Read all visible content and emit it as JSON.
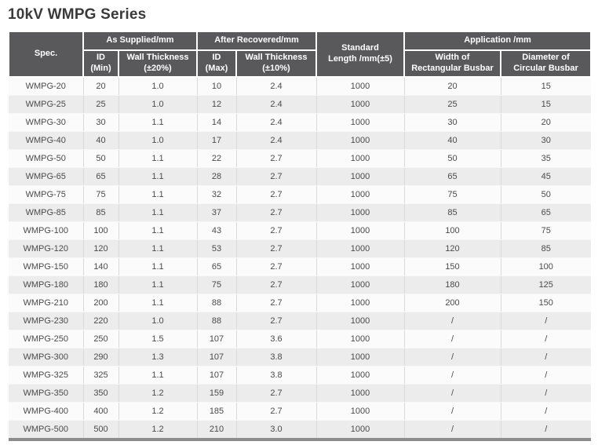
{
  "page_title": "10kV WMPG Series",
  "table": {
    "headers": {
      "spec": "Spec.",
      "as_supplied": "As Supplied/mm",
      "after_recovered": "After Recovered/mm",
      "standard_length": "Standard\nLength /mm(±5)",
      "application": "Application /mm",
      "id_min": "ID\n(Min)",
      "wall_thickness_20": "Wall Thickness\n(±20%)",
      "id_max": "ID\n(Max)",
      "wall_thickness_10": "Wall Thickness\n(±10%)",
      "width_rect_busbar": "Width of\nRectangular Busbar",
      "dia_circ_busbar": "Diameter of\nCircular Busbar"
    },
    "rows": [
      [
        "WMPG-20",
        "20",
        "1.0",
        "10",
        "2.4",
        "1000",
        "20",
        "15"
      ],
      [
        "WMPG-25",
        "25",
        "1.0",
        "12",
        "2.4",
        "1000",
        "25",
        "15"
      ],
      [
        "WMPG-30",
        "30",
        "1.1",
        "14",
        "2.4",
        "1000",
        "30",
        "20"
      ],
      [
        "WMPG-40",
        "40",
        "1.0",
        "17",
        "2.4",
        "1000",
        "40",
        "30"
      ],
      [
        "WMPG-50",
        "50",
        "1.1",
        "22",
        "2.7",
        "1000",
        "50",
        "35"
      ],
      [
        "WMPG-65",
        "65",
        "1.1",
        "28",
        "2.7",
        "1000",
        "65",
        "45"
      ],
      [
        "WMPG-75",
        "75",
        "1.1",
        "32",
        "2.7",
        "1000",
        "75",
        "50"
      ],
      [
        "WMPG-85",
        "85",
        "1.1",
        "37",
        "2.7",
        "1000",
        "85",
        "65"
      ],
      [
        "WMPG-100",
        "100",
        "1.1",
        "43",
        "2.7",
        "1000",
        "100",
        "75"
      ],
      [
        "WMPG-120",
        "120",
        "1.1",
        "53",
        "2.7",
        "1000",
        "120",
        "85"
      ],
      [
        "WMPG-150",
        "140",
        "1.1",
        "65",
        "2.7",
        "1000",
        "150",
        "100"
      ],
      [
        "WMPG-180",
        "180",
        "1.1",
        "75",
        "2.7",
        "1000",
        "180",
        "125"
      ],
      [
        "WMPG-210",
        "200",
        "1.1",
        "88",
        "2.7",
        "1000",
        "200",
        "150"
      ],
      [
        "WMPG-230",
        "220",
        "1.0",
        "88",
        "2.7",
        "1000",
        "/",
        "/"
      ],
      [
        "WMPG-250",
        "250",
        "1.5",
        "107",
        "3.6",
        "1000",
        "/",
        "/"
      ],
      [
        "WMPG-300",
        "290",
        "1.3",
        "107",
        "3.8",
        "1000",
        "/",
        "/"
      ],
      [
        "WMPG-325",
        "325",
        "1.1",
        "107",
        "3.8",
        "1000",
        "/",
        "/"
      ],
      [
        "WMPG-350",
        "350",
        "1.2",
        "159",
        "2.7",
        "1000",
        "/",
        "/"
      ],
      [
        "WMPG-400",
        "400",
        "1.2",
        "185",
        "2.7",
        "1000",
        "/",
        "/"
      ],
      [
        "WMPG-500",
        "500",
        "1.2",
        "210",
        "3.0",
        "1000",
        "/",
        "/"
      ]
    ],
    "cell_names": [
      "spec-cell",
      "id-min-cell",
      "wall-thickness-20-cell",
      "id-max-cell",
      "wall-thickness-10-cell",
      "standard-length-cell",
      "width-rect-busbar-cell",
      "dia-circ-busbar-cell"
    ]
  },
  "colors": {
    "header_bg": "#59595b",
    "header_text": "#ffffff",
    "row_odd_bg": "#fbfbfb",
    "row_even_bg": "#ececec",
    "body_text": "#4a4a4a",
    "title_text": "#3a3a3a",
    "bottom_rule": "#8c8c8c",
    "column_divider": "#d9d9d9"
  }
}
